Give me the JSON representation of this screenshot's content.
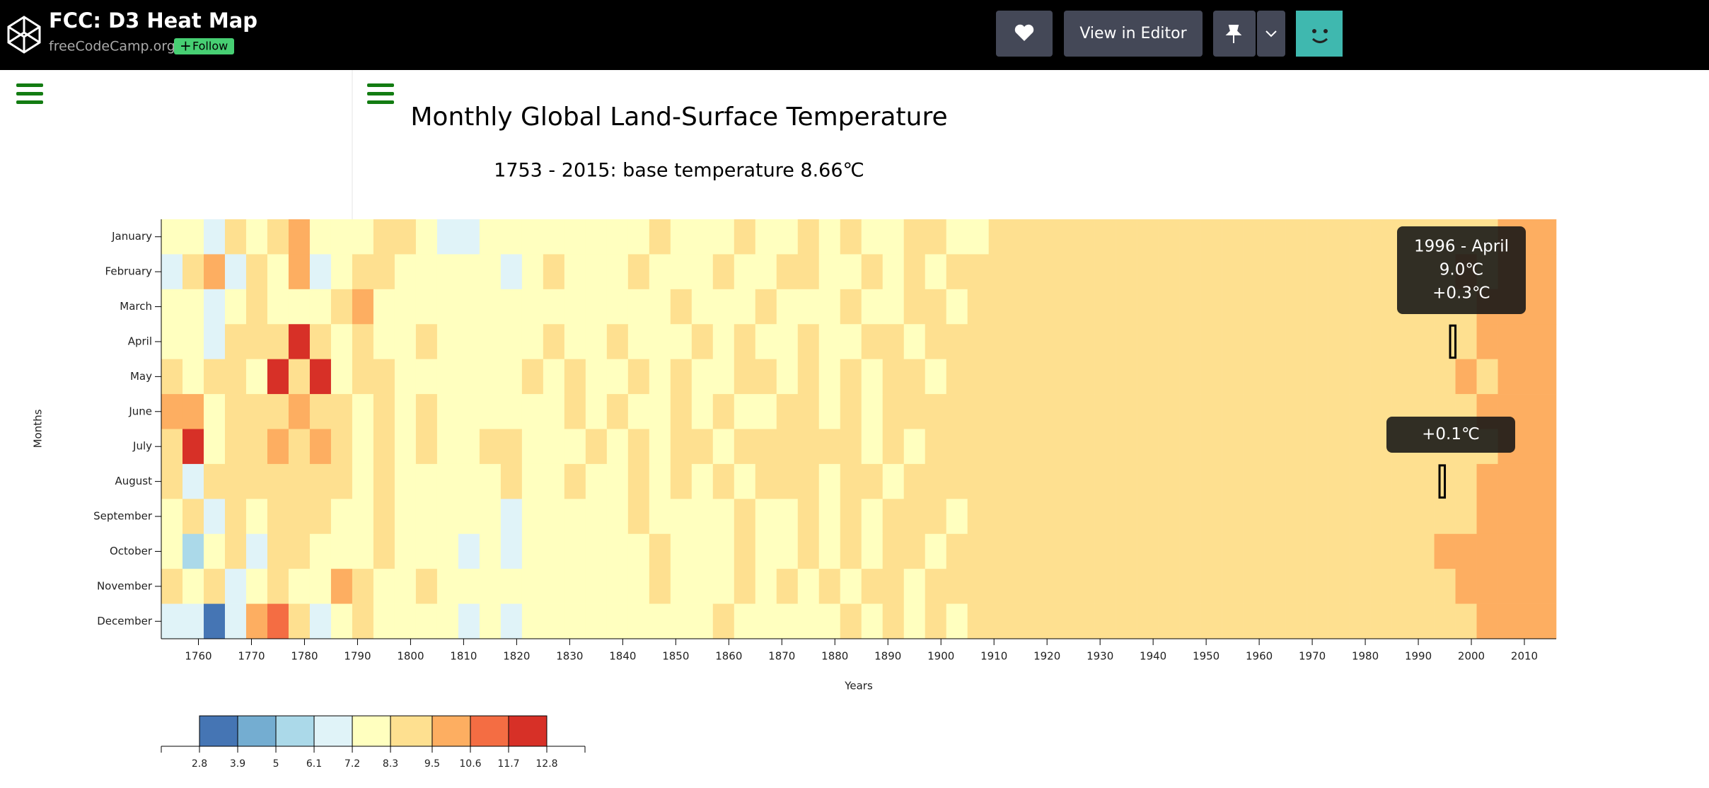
{
  "header": {
    "title": "FCC: D3 Heat Map",
    "owner": "freeCodeCamp.org",
    "follow": "Follow",
    "editor_button": "View in Editor"
  },
  "chart_data": {
    "type": "heatmap",
    "title": "Monthly Global Land-Surface Temperature",
    "subtitle": "1753 - 2015: base temperature 8.66℃",
    "x_label": "Years",
    "y_label": "Months",
    "categories": [
      "January",
      "February",
      "March",
      "April",
      "May",
      "June",
      "July",
      "August",
      "September",
      "October",
      "November",
      "December"
    ],
    "x": [
      1753,
      1757,
      1761,
      1765,
      1769,
      1773,
      1777,
      1781,
      1785,
      1789,
      1793,
      1797,
      1801,
      1805,
      1809,
      1813,
      1817,
      1821,
      1825,
      1829,
      1833,
      1837,
      1841,
      1845,
      1849,
      1853,
      1857,
      1861,
      1865,
      1869,
      1873,
      1877,
      1881,
      1885,
      1889,
      1893,
      1897,
      1901,
      1905,
      1909,
      1913,
      1917,
      1921,
      1925,
      1929,
      1933,
      1937,
      1941,
      1945,
      1949,
      1953,
      1957,
      1961,
      1965,
      1969,
      1973,
      1977,
      1981,
      1985,
      1989,
      1993,
      1997,
      2001,
      2005,
      2009,
      2013
    ],
    "values": [
      [
        8.1,
        7.4,
        6.9,
        8.9,
        7.6,
        8.7,
        9.8,
        7.8,
        8.0,
        7.2,
        8.6,
        8.4,
        7.9,
        7.1,
        6.8,
        7.9,
        7.5,
        8.2,
        7.8,
        8.0,
        7.3,
        7.9,
        8.1,
        8.4,
        7.9,
        8.2,
        8.0,
        8.5,
        8.1,
        8.2,
        8.7,
        8.0,
        8.3,
        8.1,
        8.2,
        8.4,
        8.3,
        8.1,
        8.2,
        8.4,
        8.6,
        8.7,
        8.7,
        8.8,
        8.6,
        8.9,
        8.8,
        8.8,
        8.7,
        8.7,
        8.8,
        8.9,
        8.8,
        8.7,
        8.7,
        8.9,
        8.8,
        8.9,
        9.0,
        9.2,
        9.3,
        9.1,
        9.4,
        9.6,
        9.5,
        9.8
      ],
      [
        7.0,
        8.9,
        10.2,
        6.8,
        9.4,
        8.1,
        9.6,
        6.5,
        7.9,
        8.8,
        9.1,
        7.3,
        8.0,
        7.6,
        7.4,
        8.2,
        7.0,
        7.7,
        8.3,
        7.9,
        8.1,
        7.6,
        8.4,
        7.9,
        8.2,
        8.0,
        8.6,
        8.2,
        8.0,
        8.4,
        8.3,
        8.1,
        8.2,
        8.5,
        8.0,
        8.3,
        8.2,
        8.4,
        8.3,
        8.6,
        8.5,
        8.6,
        8.8,
        8.7,
        8.9,
        8.6,
        8.8,
        8.7,
        8.9,
        8.8,
        8.6,
        8.7,
        8.9,
        8.8,
        8.7,
        8.8,
        8.9,
        9.0,
        9.1,
        9.3,
        9.2,
        9.5,
        9.4,
        9.6,
        9.7,
        9.9
      ],
      [
        7.8,
        8.2,
        6.4,
        7.5,
        8.8,
        7.9,
        8.1,
        7.7,
        8.5,
        9.6,
        8.0,
        7.6,
        7.8,
        7.3,
        7.9,
        7.5,
        8.1,
        7.8,
        7.6,
        8.0,
        7.9,
        8.2,
        7.8,
        8.0,
        8.3,
        8.1,
        8.0,
        8.2,
        8.4,
        8.1,
        8.2,
        8.0,
        8.3,
        8.2,
        8.1,
        8.3,
        8.4,
        8.2,
        8.3,
        8.5,
        8.4,
        8.7,
        8.6,
        8.8,
        8.7,
        8.9,
        8.8,
        8.7,
        8.8,
        8.9,
        8.7,
        8.8,
        8.9,
        8.7,
        8.8,
        8.9,
        8.8,
        8.9,
        9.1,
        9.0,
        9.3,
        9.4,
        9.6,
        9.5,
        9.8,
        10.0
      ],
      [
        8.0,
        7.7,
        6.9,
        9.1,
        8.3,
        9.4,
        12.2,
        8.6,
        7.4,
        8.9,
        8.2,
        7.9,
        8.4,
        7.7,
        7.5,
        8.0,
        7.6,
        7.9,
        8.3,
        8.1,
        8.0,
        8.3,
        7.9,
        8.2,
        8.0,
        8.4,
        8.1,
        8.3,
        8.2,
        8.0,
        8.4,
        8.2,
        8.1,
        8.3,
        8.5,
        8.2,
        8.4,
        8.3,
        8.5,
        8.4,
        8.6,
        8.7,
        8.9,
        8.8,
        8.7,
        8.8,
        8.9,
        8.8,
        8.7,
        8.9,
        8.8,
        8.9,
        8.7,
        8.8,
        8.9,
        8.8,
        8.9,
        9.0,
        8.9,
        9.2,
        9.4,
        9.3,
        9.6,
        9.7,
        9.5,
        9.8
      ],
      [
        8.3,
        7.2,
        8.8,
        9.3,
        7.6,
        12.0,
        8.9,
        12.4,
        8.1,
        9.2,
        8.7,
        7.8,
        8.2,
        7.4,
        7.6,
        8.1,
        7.9,
        8.3,
        8.0,
        8.4,
        8.2,
        8.0,
        8.3,
        8.1,
        8.4,
        8.2,
        8.0,
        8.3,
        8.5,
        8.2,
        8.3,
        8.1,
        8.4,
        8.2,
        8.3,
        8.5,
        8.2,
        8.4,
        8.3,
        8.4,
        8.6,
        8.8,
        8.7,
        8.9,
        8.8,
        8.7,
        8.9,
        8.8,
        8.8,
        8.7,
        8.9,
        8.8,
        8.8,
        8.9,
        8.7,
        8.8,
        8.9,
        8.9,
        9.1,
        9.0,
        9.3,
        9.5,
        9.4,
        9.7,
        9.6,
        9.9
      ],
      [
        9.8,
        10.4,
        7.3,
        9.0,
        8.5,
        8.8,
        9.7,
        8.9,
        9.3,
        8.1,
        8.6,
        7.9,
        8.3,
        7.6,
        7.8,
        8.2,
        8.0,
        8.1,
        7.9,
        8.3,
        8.1,
        8.3,
        8.0,
        8.2,
        8.4,
        8.1,
        8.3,
        8.2,
        8.0,
        8.3,
        8.4,
        8.2,
        8.3,
        8.1,
        8.4,
        8.3,
        8.5,
        8.3,
        8.4,
        8.3,
        8.7,
        8.8,
        8.8,
        8.7,
        8.9,
        8.8,
        8.7,
        8.9,
        8.8,
        8.8,
        8.9,
        8.8,
        8.7,
        8.9,
        8.8,
        8.9,
        8.8,
        9.0,
        8.9,
        9.1,
        9.3,
        9.4,
        9.5,
        9.6,
        9.7,
        9.9
      ],
      [
        8.6,
        11.9,
        8.0,
        9.2,
        8.7,
        9.6,
        8.8,
        9.5,
        8.4,
        8.2,
        8.9,
        8.1,
        8.4,
        7.7,
        7.9,
        8.3,
        8.6,
        8.1,
        8.0,
        8.2,
        8.5,
        8.2,
        8.9,
        8.1,
        8.3,
        8.6,
        8.2,
        8.4,
        8.7,
        8.3,
        8.5,
        8.6,
        8.3,
        8.2,
        8.4,
        8.2,
        8.5,
        8.3,
        8.4,
        8.6,
        8.8,
        8.7,
        8.9,
        8.8,
        8.8,
        8.7,
        8.9,
        8.8,
        8.9,
        8.8,
        8.8,
        8.9,
        8.8,
        8.9,
        8.7,
        8.9,
        8.8,
        8.9,
        8.9,
        9.1,
        9.2,
        9.4,
        9.3,
        9.5,
        9.6,
        9.8
      ],
      [
        8.4,
        7.0,
        8.6,
        9.0,
        8.3,
        9.2,
        8.5,
        8.7,
        9.4,
        8.0,
        8.8,
        7.9,
        8.2,
        7.5,
        7.8,
        8.1,
        8.4,
        7.9,
        8.2,
        8.3,
        8.0,
        8.2,
        8.4,
        8.1,
        8.3,
        8.2,
        8.4,
        8.2,
        8.5,
        8.3,
        8.4,
        8.2,
        8.5,
        8.3,
        8.2,
        8.4,
        8.6,
        8.4,
        8.5,
        8.6,
        8.7,
        8.9,
        8.8,
        8.9,
        8.8,
        8.7,
        8.8,
        8.9,
        8.8,
        8.9,
        8.8,
        8.9,
        8.8,
        8.7,
        8.9,
        8.8,
        8.9,
        8.8,
        9.0,
        9.2,
        9.3,
        9.4,
        9.6,
        9.7,
        9.5,
        9.9
      ],
      [
        8.2,
        8.6,
        7.1,
        8.9,
        8.0,
        9.0,
        8.4,
        8.6,
        7.7,
        7.3,
        8.5,
        7.5,
        8.0,
        7.2,
        7.4,
        7.9,
        7.1,
        7.8,
        8.0,
        8.2,
        8.1,
        8.0,
        8.3,
        7.9,
        8.1,
        8.2,
        8.0,
        8.3,
        8.2,
        8.1,
        8.3,
        8.2,
        8.4,
        8.1,
        8.3,
        8.5,
        8.3,
        8.2,
        8.4,
        8.5,
        8.7,
        8.8,
        8.9,
        8.7,
        8.9,
        8.8,
        8.7,
        8.9,
        8.8,
        8.7,
        8.8,
        8.9,
        8.7,
        8.8,
        8.9,
        8.8,
        8.9,
        8.9,
        9.1,
        9.0,
        9.3,
        9.2,
        9.5,
        9.6,
        9.7,
        9.8
      ],
      [
        7.9,
        5.6,
        8.2,
        8.7,
        6.3,
        8.5,
        9.3,
        7.6,
        8.1,
        7.8,
        8.4,
        7.7,
        8.1,
        7.4,
        6.8,
        7.5,
        7.0,
        8.2,
        7.9,
        8.0,
        8.2,
        7.9,
        8.1,
        8.3,
        8.0,
        8.2,
        8.1,
        8.4,
        8.2,
        8.0,
        8.3,
        8.2,
        8.5,
        8.2,
        8.3,
        8.4,
        8.2,
        8.5,
        8.7,
        8.6,
        8.8,
        8.9,
        8.8,
        8.9,
        8.9,
        8.8,
        8.9,
        8.9,
        8.8,
        8.9,
        8.8,
        8.9,
        8.9,
        8.8,
        8.9,
        8.9,
        8.8,
        9.1,
        9.2,
        9.4,
        9.5,
        9.6,
        9.7,
        9.8,
        9.9,
        10.1
      ],
      [
        8.5,
        7.6,
        8.9,
        6.5,
        8.0,
        9.4,
        8.2,
        7.9,
        9.6,
        8.6,
        8.1,
        7.8,
        8.3,
        7.5,
        7.7,
        8.0,
        7.6,
        8.1,
        8.2,
        7.9,
        8.0,
        8.2,
        7.9,
        8.3,
        8.1,
        8.2,
        8.0,
        8.3,
        8.1,
        8.4,
        8.2,
        8.3,
        8.1,
        8.4,
        8.5,
        8.2,
        8.3,
        8.4,
        8.3,
        8.6,
        8.7,
        8.8,
        8.9,
        8.8,
        8.7,
        8.9,
        8.8,
        8.7,
        8.9,
        8.8,
        8.9,
        8.8,
        8.8,
        8.9,
        8.7,
        8.8,
        9.0,
        8.9,
        9.2,
        9.3,
        9.4,
        9.6,
        9.7,
        9.9,
        9.8,
        10.0
      ],
      [
        6.2,
        7.1,
        3.5,
        6.9,
        9.8,
        10.9,
        8.3,
        6.8,
        7.5,
        8.4,
        8.0,
        7.6,
        7.9,
        8.1,
        7.0,
        7.8,
        6.3,
        7.7,
        8.2,
        8.0,
        7.4,
        8.1,
        7.8,
        8.2,
        8.0,
        8.1,
        8.3,
        8.0,
        8.2,
        8.1,
        8.2,
        8.0,
        8.3,
        8.1,
        8.4,
        8.2,
        8.3,
        8.1,
        8.3,
        8.4,
        8.7,
        8.8,
        8.7,
        8.9,
        8.8,
        8.7,
        8.8,
        8.9,
        8.8,
        8.7,
        8.8,
        8.9,
        8.7,
        8.8,
        8.9,
        8.8,
        8.9,
        9.0,
        9.1,
        9.0,
        9.3,
        9.4,
        9.6,
        9.5,
        9.7,
        9.9
      ]
    ],
    "xlim": [
      1753,
      2016
    ],
    "xticks": [
      1760,
      1770,
      1780,
      1790,
      1800,
      1810,
      1820,
      1830,
      1840,
      1850,
      1860,
      1870,
      1880,
      1890,
      1900,
      1910,
      1920,
      1930,
      1940,
      1950,
      1960,
      1970,
      1980,
      1990,
      2000,
      2010
    ],
    "legend": {
      "lim": [
        1.7,
        13.9
      ],
      "ticks": [
        2.8,
        3.9,
        5.0,
        6.1,
        7.2,
        8.3,
        9.5,
        10.6,
        11.7,
        12.8
      ],
      "colors": [
        "#4575b4",
        "#74add1",
        "#abd9e9",
        "#e0f3f8",
        "#ffffbf",
        "#fee090",
        "#fdae61",
        "#f46d43",
        "#d73027"
      ]
    },
    "highlights": [
      {
        "year": 1996,
        "month": "April"
      },
      {
        "year": 1994,
        "month": "August"
      }
    ],
    "tooltips": [
      {
        "lines": [
          "1996 - April",
          "9.0℃",
          "+0.3℃"
        ]
      },
      {
        "lines": [
          "+0.1℃"
        ]
      }
    ]
  }
}
